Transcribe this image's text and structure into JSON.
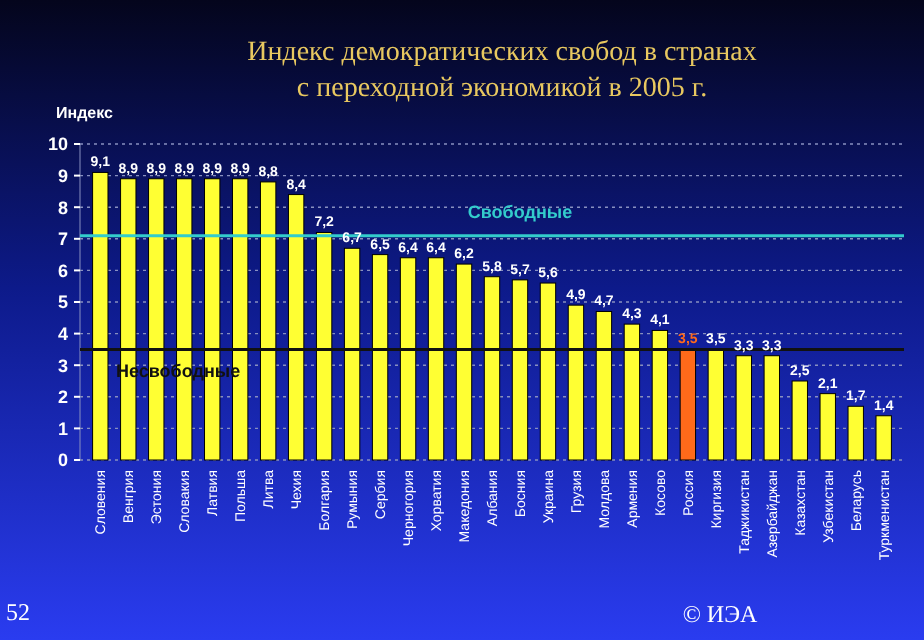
{
  "chart_data": {
    "type": "bar",
    "title": "Индекс демократических свобод в странах",
    "subtitle": "с переходной экономикой в 2005 г.",
    "ylabel": "Индекс",
    "categories": [
      "Словения",
      "Венгрия",
      "Эстония",
      "Словакия",
      "Латвия",
      "Польша",
      "Литва",
      "Чехия",
      "Болгария",
      "Румыния",
      "Сербия",
      "Черногория",
      "Хорватия",
      "Македония",
      "Албания",
      "Босния",
      "Украина",
      "Грузия",
      "Молдова",
      "Армения",
      "Косово",
      "Россия",
      "Киргизия",
      "Таджикистан",
      "Азербайджан",
      "Казахстан",
      "Узбекистан",
      "Беларусь",
      "Туркменистан"
    ],
    "values": [
      9.1,
      8.9,
      8.9,
      8.9,
      8.9,
      8.9,
      8.8,
      8.4,
      7.2,
      6.7,
      6.5,
      6.4,
      6.4,
      6.2,
      5.8,
      5.7,
      5.6,
      4.9,
      4.7,
      4.3,
      4.1,
      3.5,
      3.5,
      3.3,
      3.3,
      2.5,
      2.1,
      1.7,
      1.4
    ],
    "value_labels": [
      "9,1",
      "8,9",
      "8,9",
      "8,9",
      "8,9",
      "8,9",
      "8,8",
      "8,4",
      "7,2",
      "6,7",
      "6,5",
      "6,4",
      "6,4",
      "6,2",
      "5,8",
      "5,7",
      "5,6",
      "4,9",
      "4,7",
      "4,3",
      "4,1",
      "3,5",
      "3,5",
      "3,3",
      "3,3",
      "2,5",
      "2,1",
      "1,7",
      "1,4"
    ],
    "colors": [
      "#ffff33",
      "#ffff33",
      "#ffff33",
      "#ffff33",
      "#ffff33",
      "#ffff33",
      "#ffff33",
      "#ffff33",
      "#ffff33",
      "#ffff33",
      "#ffff33",
      "#ffff33",
      "#ffff33",
      "#ffff33",
      "#ffff33",
      "#ffff33",
      "#ffff33",
      "#ffff33",
      "#ffff33",
      "#ffff33",
      "#ffff33",
      "#ff6a1a",
      "#ffff33",
      "#ffff33",
      "#ffff33",
      "#ffff33",
      "#ffff33",
      "#ffff33",
      "#ffff33"
    ],
    "ylim": [
      0,
      10
    ],
    "yticks": [
      0,
      1,
      2,
      3,
      4,
      5,
      6,
      7,
      8,
      9,
      10
    ],
    "grid": "y",
    "ref_lines": [
      {
        "axis": "y",
        "value": 7.1,
        "label": "Свободные",
        "color": "#33cccc"
      },
      {
        "axis": "y",
        "value": 3.5,
        "label": "Несвободные",
        "color": "#111111"
      }
    ],
    "annotations": [
      "© ИЭА",
      "52"
    ]
  }
}
